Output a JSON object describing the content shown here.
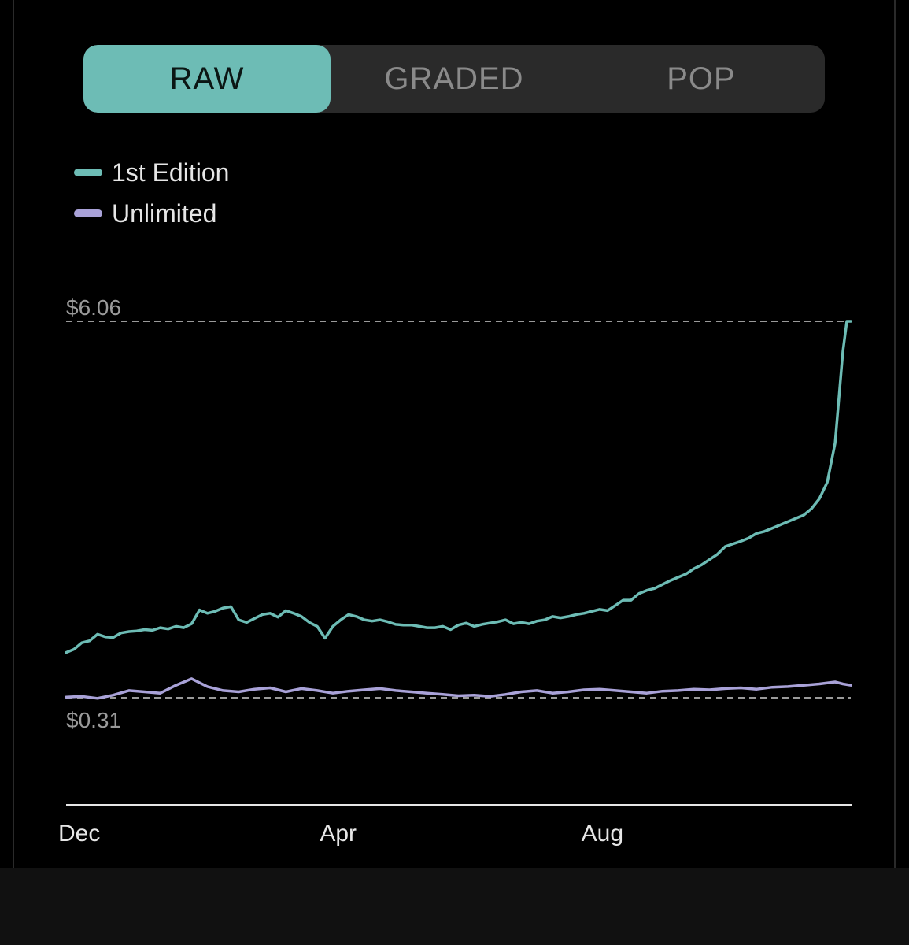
{
  "tabs": [
    {
      "label": "RAW",
      "active": true
    },
    {
      "label": "GRADED",
      "active": false
    },
    {
      "label": "POP",
      "active": false
    }
  ],
  "colors": {
    "accent": "#6dbcb5",
    "series_1st_edition": "#6dbcb5",
    "series_unlimited": "#a9a2d8",
    "reference_line": "#9a9a9a"
  },
  "chart_data": {
    "type": "line",
    "x_tick_labels": [
      "Dec",
      "Apr",
      "Aug"
    ],
    "x_tick_positions": [
      0,
      4,
      8
    ],
    "x_range": [
      0,
      12
    ],
    "reference_lines": [
      {
        "label": "$6.06",
        "value": 6.06
      },
      {
        "label": "$0.31",
        "value": 0.31
      }
    ],
    "ylim": [
      -1.33,
      6.06
    ],
    "legend": "top-left",
    "grid": false,
    "series": [
      {
        "name": "1st Edition",
        "x": [
          0.0,
          0.12,
          0.24,
          0.36,
          0.48,
          0.6,
          0.72,
          0.84,
          0.96,
          1.08,
          1.2,
          1.32,
          1.44,
          1.56,
          1.68,
          1.8,
          1.92,
          2.04,
          2.16,
          2.28,
          2.4,
          2.52,
          2.64,
          2.76,
          2.88,
          3.0,
          3.12,
          3.24,
          3.36,
          3.48,
          3.6,
          3.72,
          3.84,
          3.96,
          4.08,
          4.2,
          4.32,
          4.44,
          4.56,
          4.68,
          4.8,
          4.92,
          5.04,
          5.16,
          5.28,
          5.4,
          5.52,
          5.64,
          5.76,
          5.88,
          6.0,
          6.12,
          6.24,
          6.36,
          6.48,
          6.6,
          6.72,
          6.84,
          6.96,
          7.08,
          7.2,
          7.32,
          7.44,
          7.56,
          7.68,
          7.8,
          7.92,
          8.04,
          8.16,
          8.28,
          8.4,
          8.52,
          8.64,
          8.76,
          8.88,
          9.0,
          9.12,
          9.24,
          9.36,
          9.48,
          9.6,
          9.72,
          9.84,
          9.96,
          10.08,
          10.2,
          10.32,
          10.44,
          10.56,
          10.68,
          10.8,
          10.92,
          11.04,
          11.16,
          11.28,
          11.4,
          11.52,
          11.64,
          11.76,
          11.88,
          11.94,
          12.0
        ],
        "values": [
          1.0,
          1.05,
          1.15,
          1.18,
          1.28,
          1.24,
          1.23,
          1.3,
          1.32,
          1.33,
          1.35,
          1.34,
          1.38,
          1.36,
          1.4,
          1.38,
          1.44,
          1.65,
          1.6,
          1.63,
          1.68,
          1.7,
          1.5,
          1.46,
          1.52,
          1.58,
          1.6,
          1.54,
          1.64,
          1.6,
          1.55,
          1.46,
          1.4,
          1.22,
          1.4,
          1.5,
          1.58,
          1.55,
          1.5,
          1.48,
          1.5,
          1.47,
          1.43,
          1.42,
          1.42,
          1.4,
          1.38,
          1.38,
          1.4,
          1.35,
          1.42,
          1.45,
          1.4,
          1.43,
          1.45,
          1.47,
          1.5,
          1.44,
          1.46,
          1.44,
          1.48,
          1.5,
          1.55,
          1.53,
          1.55,
          1.58,
          1.6,
          1.63,
          1.66,
          1.64,
          1.72,
          1.8,
          1.8,
          1.9,
          1.95,
          1.98,
          2.04,
          2.1,
          2.15,
          2.2,
          2.28,
          2.34,
          2.42,
          2.5,
          2.62,
          2.66,
          2.7,
          2.75,
          2.82,
          2.85,
          2.9,
          2.95,
          3.0,
          3.05,
          3.1,
          3.2,
          3.35,
          3.6,
          4.2,
          5.6,
          6.06,
          6.06
        ]
      },
      {
        "name": "Unlimited",
        "x": [
          0.0,
          0.24,
          0.48,
          0.72,
          0.96,
          1.2,
          1.44,
          1.68,
          1.92,
          2.16,
          2.4,
          2.64,
          2.88,
          3.12,
          3.36,
          3.6,
          3.84,
          4.08,
          4.32,
          4.56,
          4.8,
          5.04,
          5.28,
          5.52,
          5.76,
          6.0,
          6.24,
          6.48,
          6.72,
          6.96,
          7.2,
          7.44,
          7.68,
          7.92,
          8.16,
          8.4,
          8.64,
          8.88,
          9.12,
          9.36,
          9.6,
          9.84,
          10.08,
          10.32,
          10.56,
          10.8,
          11.04,
          11.28,
          11.52,
          11.76,
          11.88,
          12.0
        ],
        "values": [
          0.32,
          0.33,
          0.3,
          0.35,
          0.42,
          0.4,
          0.38,
          0.5,
          0.6,
          0.48,
          0.42,
          0.4,
          0.44,
          0.46,
          0.4,
          0.45,
          0.42,
          0.38,
          0.41,
          0.43,
          0.45,
          0.42,
          0.4,
          0.38,
          0.36,
          0.34,
          0.35,
          0.33,
          0.36,
          0.4,
          0.42,
          0.38,
          0.4,
          0.43,
          0.44,
          0.42,
          0.4,
          0.38,
          0.41,
          0.42,
          0.44,
          0.43,
          0.45,
          0.46,
          0.44,
          0.47,
          0.48,
          0.5,
          0.52,
          0.55,
          0.52,
          0.5
        ]
      }
    ]
  }
}
